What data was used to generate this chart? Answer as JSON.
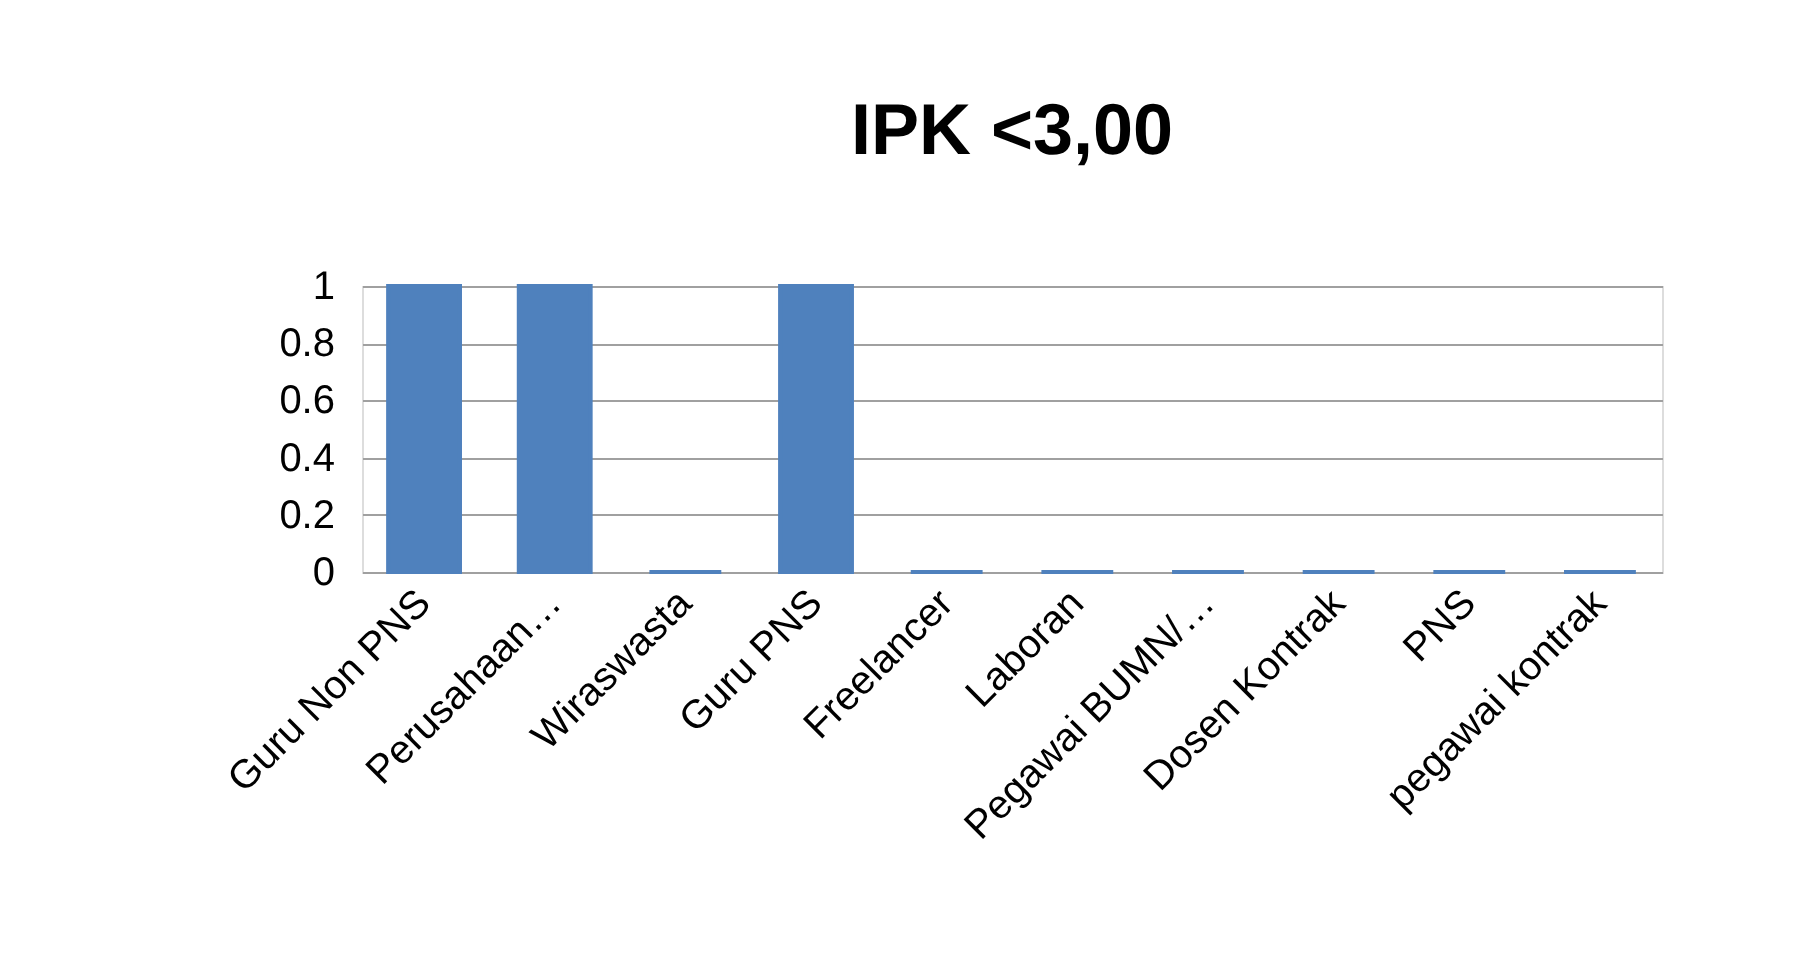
{
  "chart_data": {
    "type": "bar",
    "title": "IPK <3,00",
    "categories": [
      "Guru Non PNS",
      "Perusahaan…",
      "Wiraswasta",
      "Guru PNS",
      "Freelancer",
      "Laboran",
      "Pegawai BUMN/…",
      "Dosen Kontrak",
      "PNS",
      "pegawai kontrak"
    ],
    "values": [
      1,
      1,
      0,
      1,
      0,
      0,
      0,
      0,
      0,
      0
    ],
    "color": "#4f81bd",
    "ylim": [
      0,
      1
    ],
    "yticks": [
      0,
      0.2,
      0.4,
      0.6,
      0.8,
      1
    ],
    "grid": "y"
  }
}
